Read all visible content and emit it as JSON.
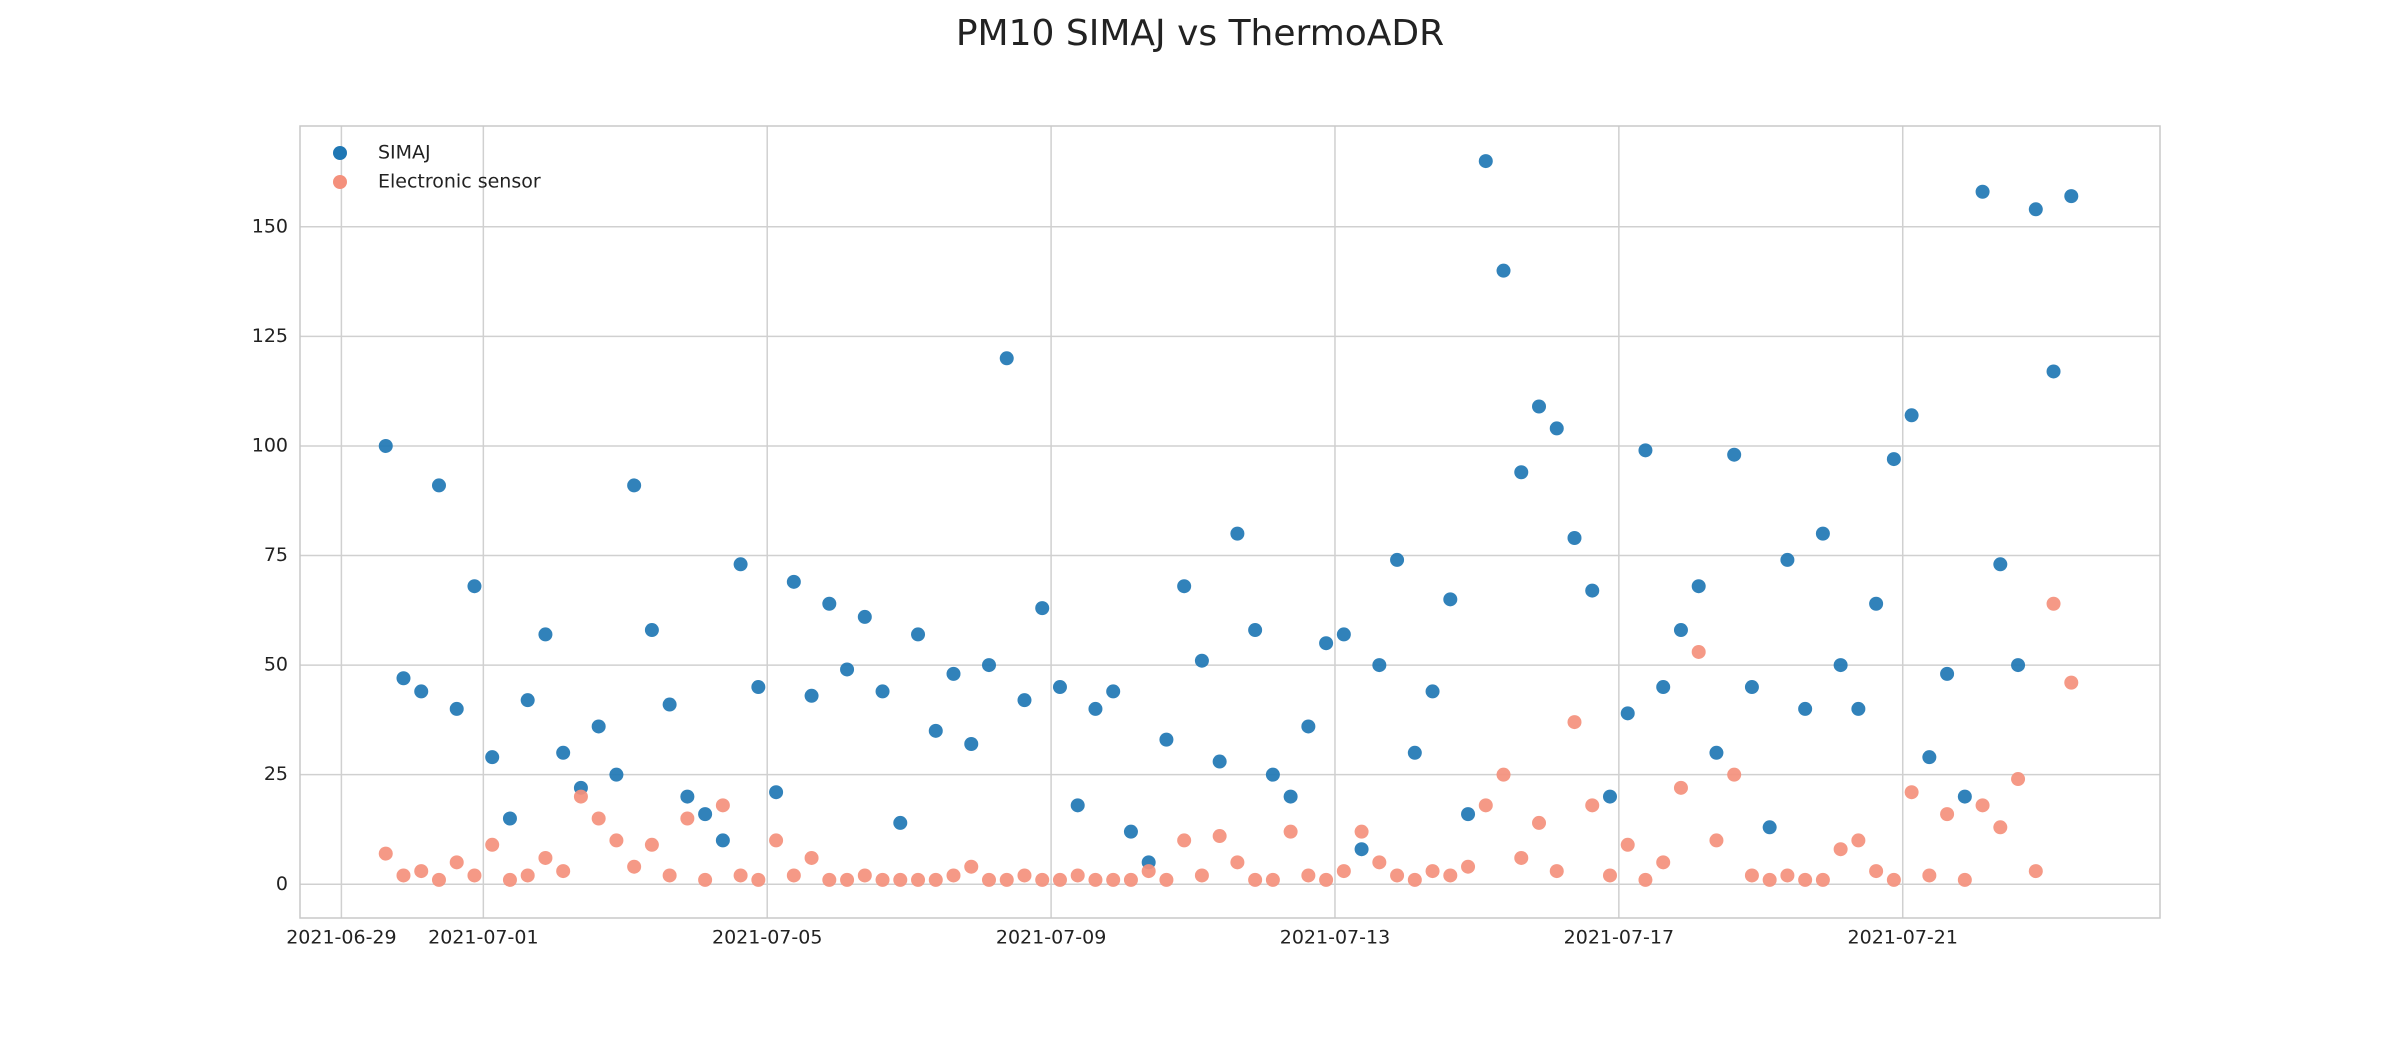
{
  "chart_data": {
    "type": "scatter",
    "title": "PM10 SIMAJ vs ThermoADR",
    "x": [
      "2021-06-29 15:00",
      "2021-06-29 21:00",
      "2021-06-30 03:00",
      "2021-06-30 09:00",
      "2021-06-30 15:00",
      "2021-06-30 21:00",
      "2021-07-01 03:00",
      "2021-07-01 09:00",
      "2021-07-01 15:00",
      "2021-07-01 21:00",
      "2021-07-02 03:00",
      "2021-07-02 09:00",
      "2021-07-02 15:00",
      "2021-07-02 21:00",
      "2021-07-03 03:00",
      "2021-07-03 09:00",
      "2021-07-03 15:00",
      "2021-07-03 21:00",
      "2021-07-04 03:00",
      "2021-07-04 09:00",
      "2021-07-04 15:00",
      "2021-07-04 21:00",
      "2021-07-05 03:00",
      "2021-07-05 09:00",
      "2021-07-05 15:00",
      "2021-07-05 21:00",
      "2021-07-06 03:00",
      "2021-07-06 09:00",
      "2021-07-06 15:00",
      "2021-07-06 21:00",
      "2021-07-07 03:00",
      "2021-07-07 09:00",
      "2021-07-07 15:00",
      "2021-07-07 21:00",
      "2021-07-08 03:00",
      "2021-07-08 09:00",
      "2021-07-08 15:00",
      "2021-07-08 21:00",
      "2021-07-09 03:00",
      "2021-07-09 09:00",
      "2021-07-09 15:00",
      "2021-07-09 21:00",
      "2021-07-10 03:00",
      "2021-07-10 09:00",
      "2021-07-10 15:00",
      "2021-07-10 21:00",
      "2021-07-11 03:00",
      "2021-07-11 09:00",
      "2021-07-11 15:00",
      "2021-07-11 21:00",
      "2021-07-12 03:00",
      "2021-07-12 09:00",
      "2021-07-12 15:00",
      "2021-07-12 21:00",
      "2021-07-13 03:00",
      "2021-07-13 09:00",
      "2021-07-13 15:00",
      "2021-07-13 21:00",
      "2021-07-14 03:00",
      "2021-07-14 09:00",
      "2021-07-14 15:00",
      "2021-07-14 21:00",
      "2021-07-15 03:00",
      "2021-07-15 09:00",
      "2021-07-15 15:00",
      "2021-07-15 21:00",
      "2021-07-16 03:00",
      "2021-07-16 09:00",
      "2021-07-16 15:00",
      "2021-07-16 21:00",
      "2021-07-17 03:00",
      "2021-07-17 09:00",
      "2021-07-17 15:00",
      "2021-07-17 21:00",
      "2021-07-18 03:00",
      "2021-07-18 09:00",
      "2021-07-18 15:00",
      "2021-07-18 21:00",
      "2021-07-19 03:00",
      "2021-07-19 09:00",
      "2021-07-19 15:00",
      "2021-07-19 21:00",
      "2021-07-20 03:00",
      "2021-07-20 09:00",
      "2021-07-20 15:00",
      "2021-07-20 21:00",
      "2021-07-21 03:00",
      "2021-07-21 09:00",
      "2021-07-21 15:00",
      "2021-07-21 21:00",
      "2021-07-22 03:00",
      "2021-07-22 09:00",
      "2021-07-22 15:00",
      "2021-07-22 21:00",
      "2021-07-23 03:00",
      "2021-07-23 09:00"
    ],
    "series": [
      {
        "name": "SIMAJ",
        "color": "#1f77b4",
        "values": [
          100,
          47,
          44,
          91,
          40,
          68,
          29,
          15,
          42,
          57,
          30,
          22,
          36,
          25,
          91,
          58,
          41,
          20,
          16,
          10,
          73,
          45,
          21,
          69,
          43,
          64,
          49,
          61,
          44,
          14,
          57,
          35,
          48,
          32,
          50,
          120,
          42,
          63,
          45,
          18,
          40,
          44,
          12,
          5,
          33,
          68,
          51,
          28,
          80,
          58,
          25,
          20,
          36,
          55,
          57,
          8,
          50,
          74,
          30,
          44,
          65,
          16,
          165,
          140,
          94,
          109,
          104,
          79,
          67,
          20,
          39,
          99,
          45,
          58,
          68,
          30,
          98,
          45,
          13,
          74,
          40,
          80,
          50,
          40,
          64,
          97,
          107,
          29,
          48,
          20,
          158,
          73,
          50,
          154,
          117,
          157
        ]
      },
      {
        "name": "Electronic sensor",
        "color": "#f4907c",
        "values": [
          7,
          2,
          3,
          1,
          5,
          2,
          9,
          1,
          2,
          6,
          3,
          20,
          15,
          10,
          4,
          9,
          2,
          15,
          1,
          18,
          2,
          1,
          10,
          2,
          6,
          1,
          1,
          2,
          1,
          1,
          1,
          1,
          2,
          4,
          1,
          1,
          2,
          1,
          1,
          2,
          1,
          1,
          1,
          3,
          1,
          10,
          2,
          11,
          5,
          1,
          1,
          12,
          2,
          1,
          3,
          12,
          5,
          2,
          1,
          3,
          2,
          4,
          18,
          25,
          6,
          14,
          3,
          37,
          18,
          2,
          9,
          1,
          5,
          22,
          53,
          10,
          25,
          2,
          1,
          2,
          1,
          1,
          8,
          10,
          3,
          1,
          21,
          2,
          16,
          1,
          18,
          13,
          24,
          3,
          64,
          46
        ]
      }
    ],
    "xlim": [
      "2021-06-28 10:00",
      "2021-07-24 15:00"
    ],
    "xticks": [
      "2021-06-29",
      "2021-07-01",
      "2021-07-05",
      "2021-07-09",
      "2021-07-13",
      "2021-07-17",
      "2021-07-21"
    ],
    "ylim": [
      -7.7,
      173
    ],
    "yticks": [
      0,
      25,
      50,
      75,
      100,
      125,
      150
    ],
    "grid": true,
    "legend": "upper left"
  }
}
